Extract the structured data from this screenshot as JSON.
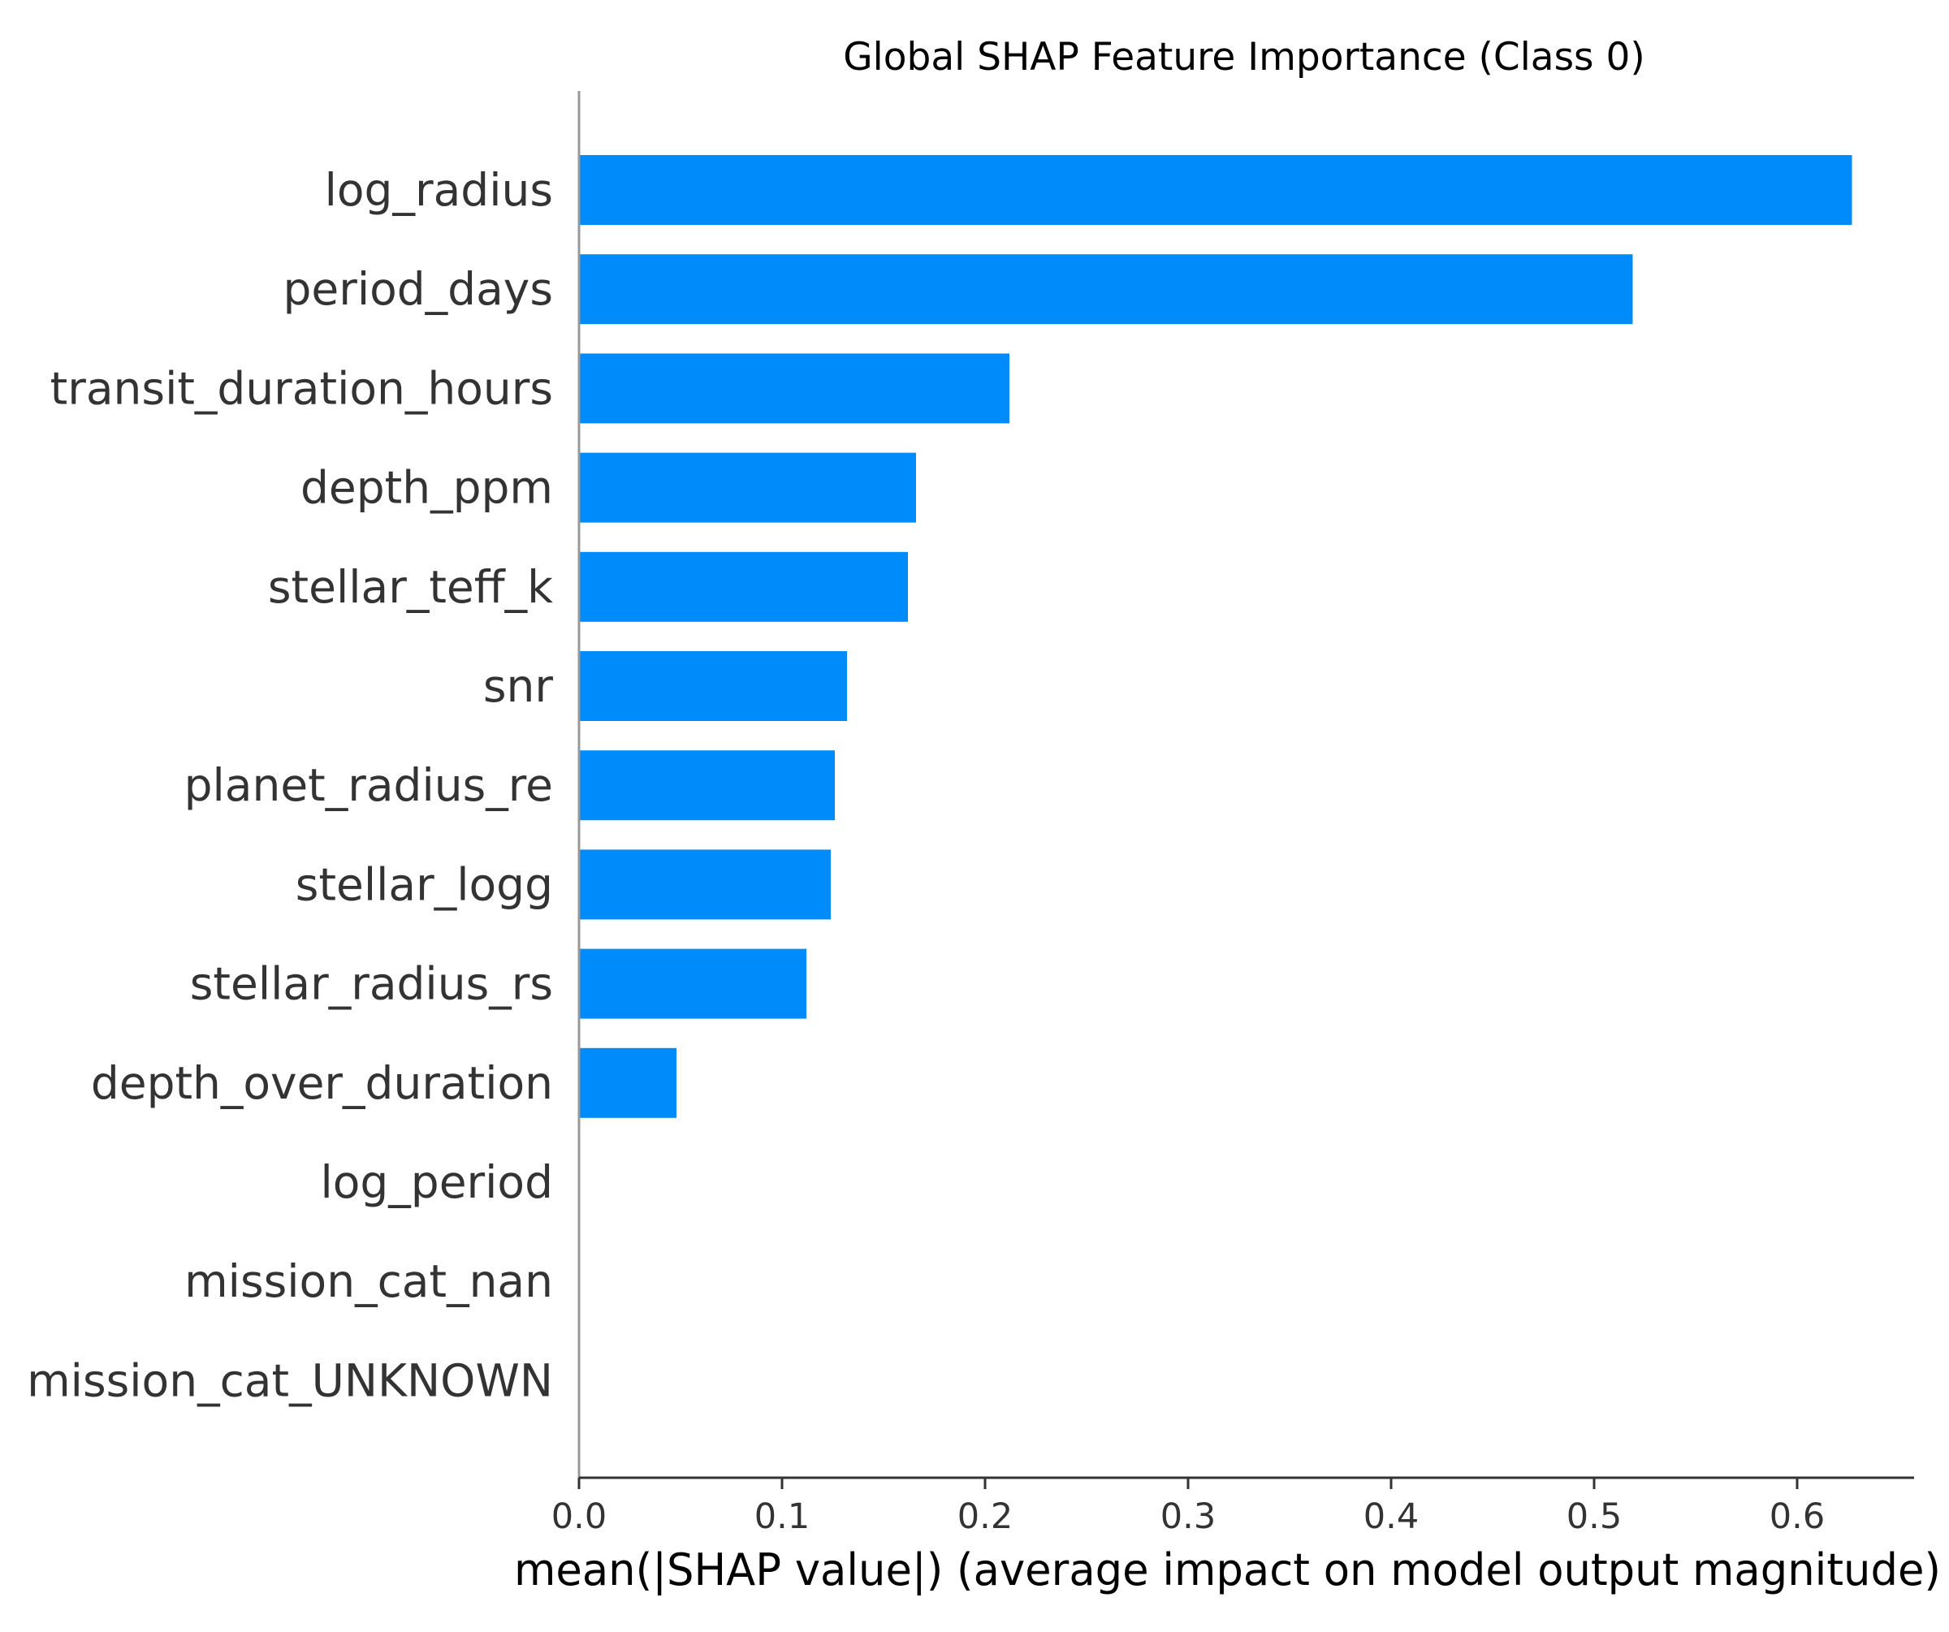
{
  "chart_data": {
    "type": "bar",
    "orientation": "horizontal",
    "title": "Global SHAP Feature Importance (Class 0)",
    "xlabel": "mean(|SHAP value|) (average impact on model output magnitude)",
    "ylabel": "",
    "categories": [
      "log_radius",
      "period_days",
      "transit_duration_hours",
      "depth_ppm",
      "stellar_teff_k",
      "snr",
      "planet_radius_re",
      "stellar_logg",
      "stellar_radius_rs",
      "depth_over_duration",
      "log_period",
      "mission_cat_nan",
      "mission_cat_UNKNOWN"
    ],
    "values": [
      0.627,
      0.519,
      0.212,
      0.166,
      0.162,
      0.132,
      0.126,
      0.124,
      0.112,
      0.048,
      0.0,
      0.0,
      0.0
    ],
    "xlim": [
      0,
      0.66
    ],
    "xticks": [
      "0.0",
      "0.1",
      "0.2",
      "0.3",
      "0.4",
      "0.5",
      "0.6"
    ],
    "grid": false,
    "legend": "none",
    "bar_color": "#008bfb"
  }
}
